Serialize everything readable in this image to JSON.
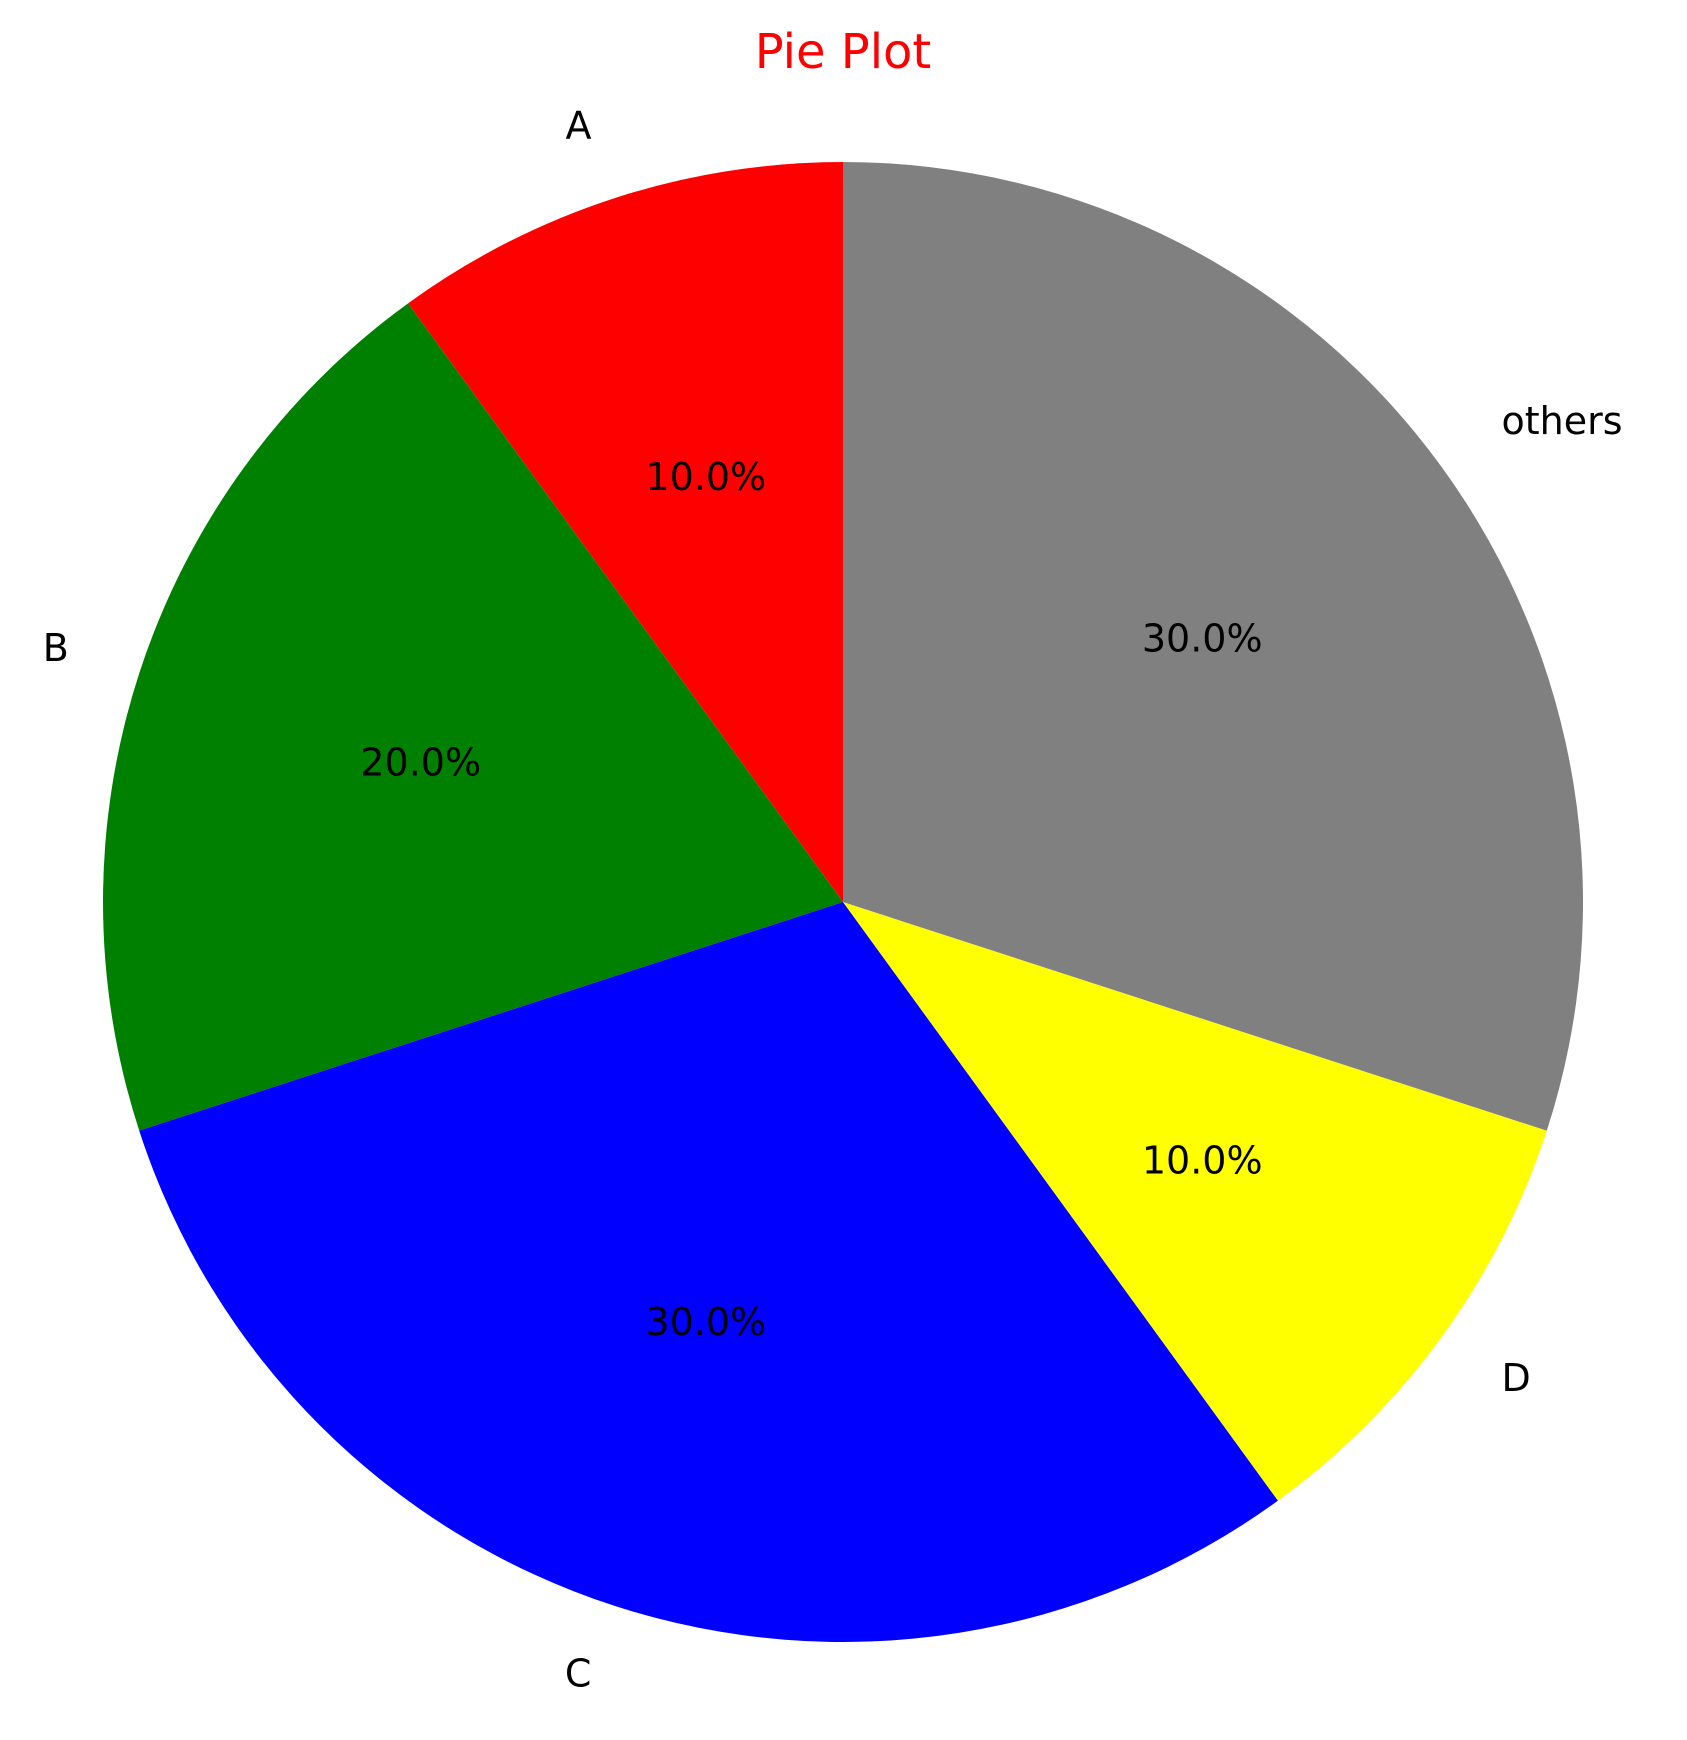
{
  "chart_data": {
    "type": "pie",
    "title": "Pie Plot",
    "title_color": "#ff0000",
    "start_angle_deg": 90,
    "direction": "counterclockwise",
    "slices": [
      {
        "label": "A",
        "value": 10,
        "pct_text": "10.0%",
        "color": "#ff0000"
      },
      {
        "label": "B",
        "value": 20,
        "pct_text": "20.0%",
        "color": "#008000"
      },
      {
        "label": "C",
        "value": 30,
        "pct_text": "30.0%",
        "color": "#0000ff"
      },
      {
        "label": "D",
        "value": 10,
        "pct_text": "10.0%",
        "color": "#ffff00"
      },
      {
        "label": "others",
        "value": 30,
        "pct_text": "30.0%",
        "color": "#808080"
      }
    ]
  }
}
